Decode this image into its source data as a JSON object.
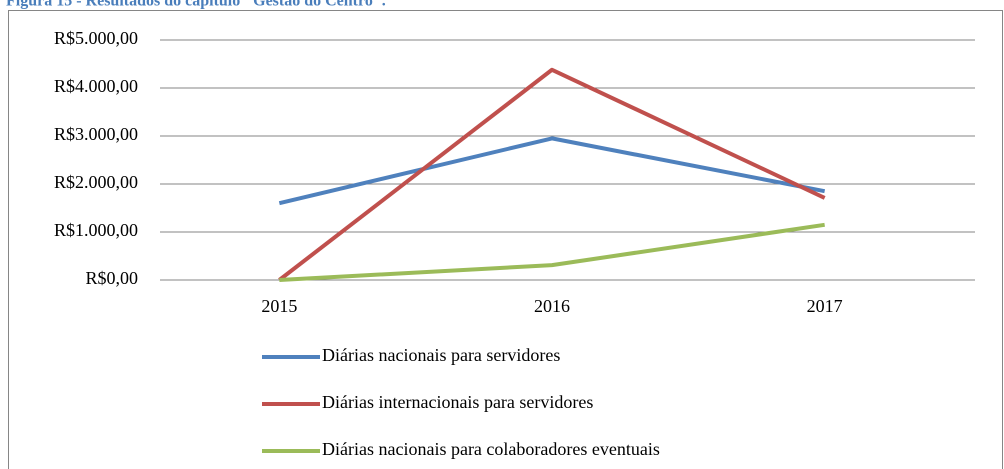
{
  "chart_data": {
    "type": "line",
    "title": "Figura 15 - Resultados do capítulo \"Gestão do Centro\".",
    "categories": [
      "2015",
      "2016",
      "2017"
    ],
    "series": [
      {
        "name": "Diárias nacionais para servidores",
        "color": "#4f81bd",
        "values": [
          1600,
          2950,
          1850
        ]
      },
      {
        "name": "Diárias internacionais para servidores",
        "color": "#c0504d",
        "values": [
          0,
          4380,
          1710
        ]
      },
      {
        "name": "Diárias nacionais para colaboradores eventuais",
        "color": "#9bbb59",
        "values": [
          0,
          310,
          1150
        ]
      }
    ],
    "ylim": [
      0,
      5000
    ],
    "yticks": [
      {
        "value": 0,
        "label": "R$0,00"
      },
      {
        "value": 1000,
        "label": "R$1.000,00"
      },
      {
        "value": 2000,
        "label": "R$2.000,00"
      },
      {
        "value": 3000,
        "label": "R$3.000,00"
      },
      {
        "value": 4000,
        "label": "R$4.000,00"
      },
      {
        "value": 5000,
        "label": "R$5.000,00"
      }
    ],
    "grid": true,
    "legend": "bottom"
  }
}
